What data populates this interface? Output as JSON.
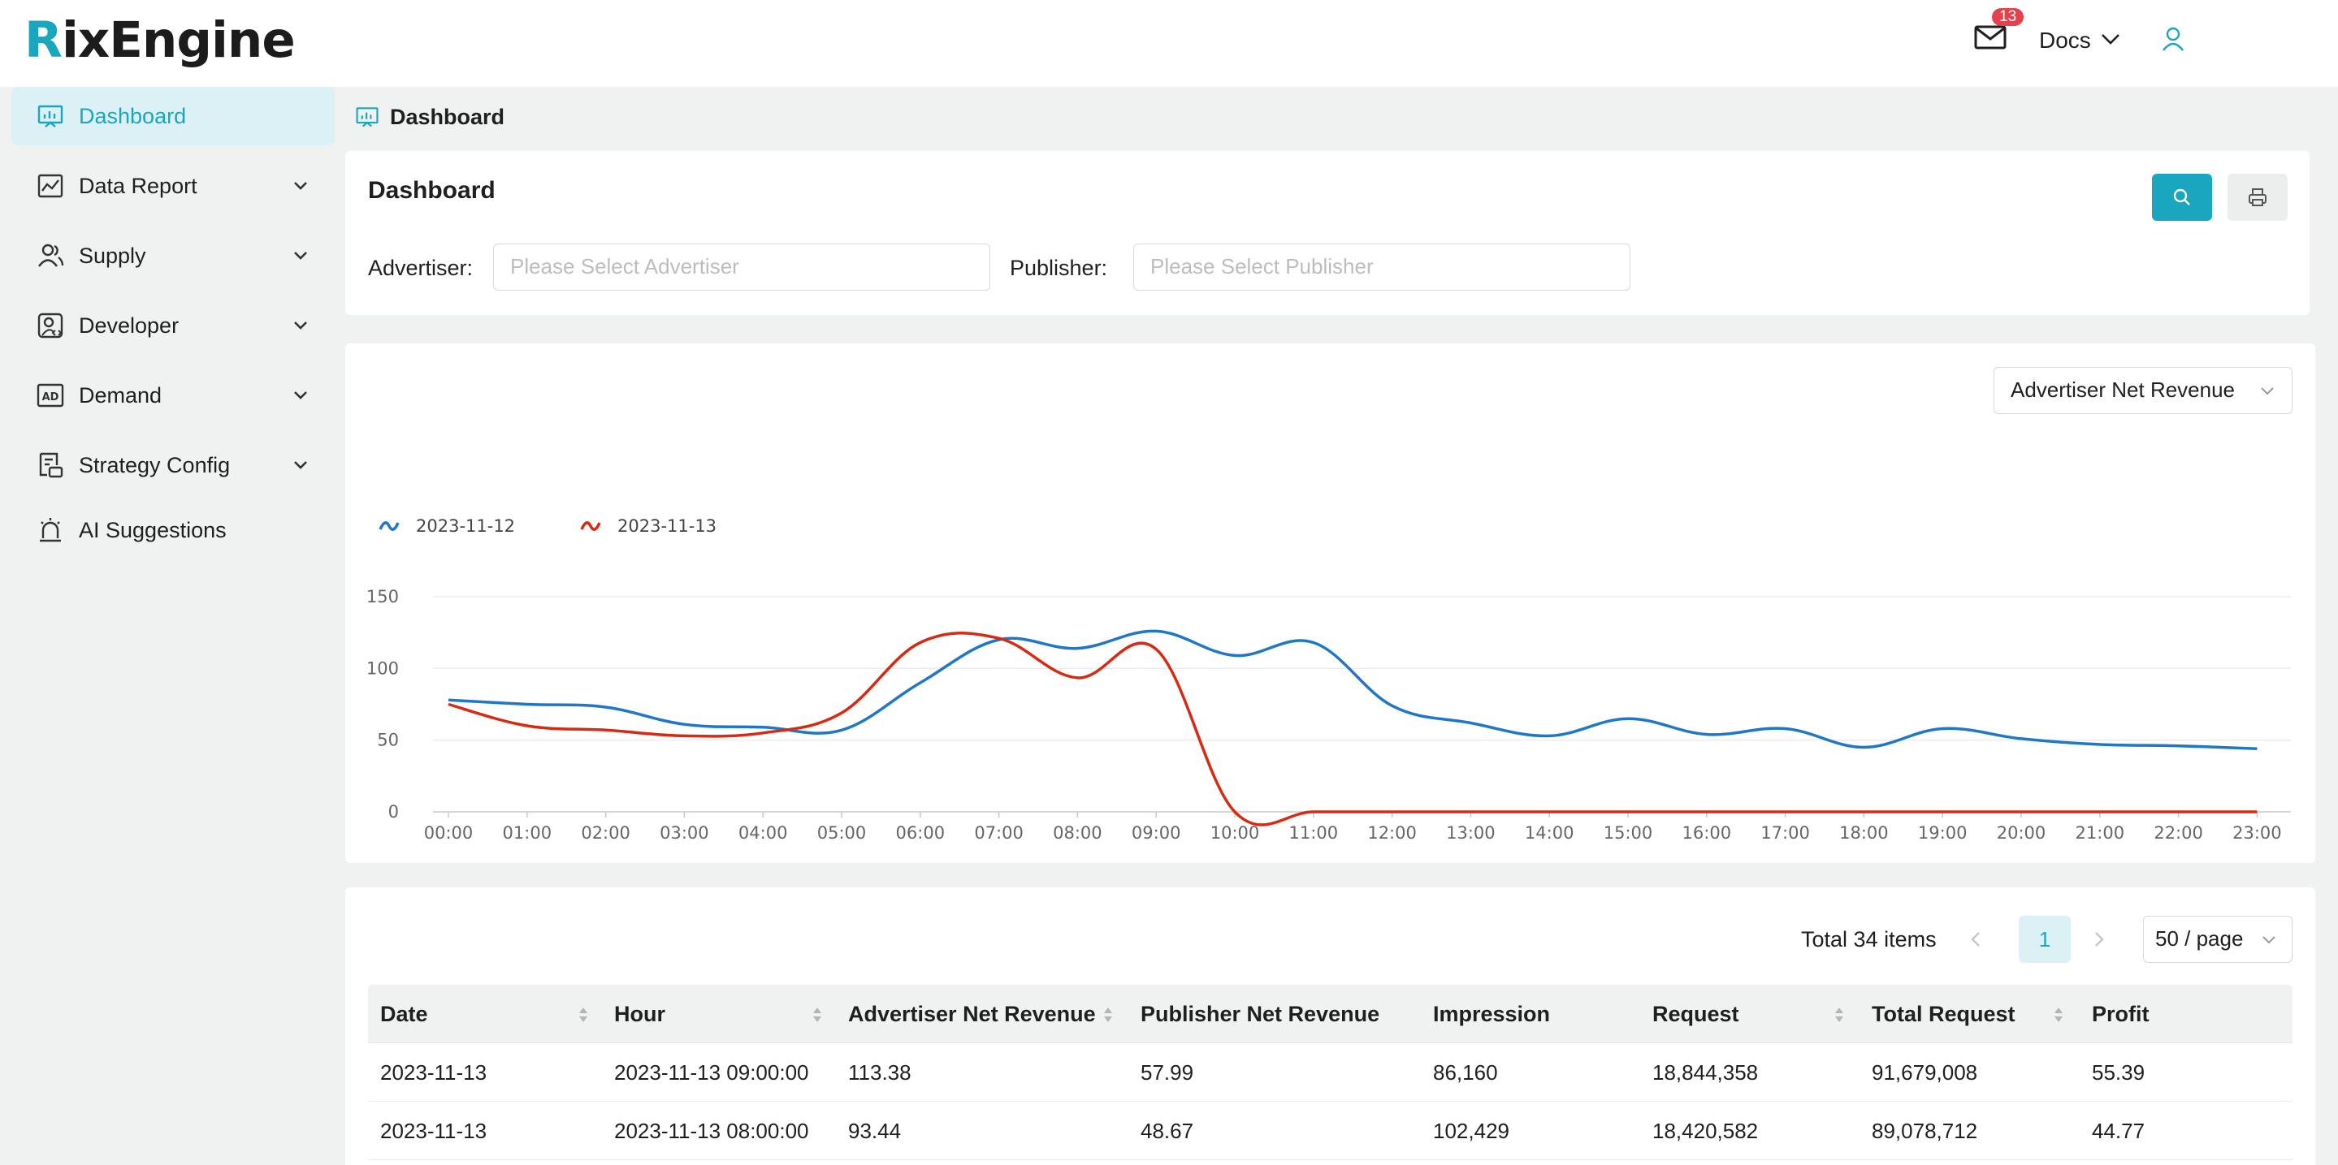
{
  "brand": {
    "logo_first": "R",
    "logo_rest": "ixEngine"
  },
  "header": {
    "mail_count": "13",
    "docs_label": "Docs"
  },
  "sidebar": {
    "items": [
      {
        "label": "Dashboard",
        "icon": "dashboard-icon",
        "active": true
      },
      {
        "label": "Data Report",
        "icon": "chart-icon",
        "expandable": true
      },
      {
        "label": "Supply",
        "icon": "users-icon",
        "expandable": true
      },
      {
        "label": "Developer",
        "icon": "developer-icon",
        "expandable": true
      },
      {
        "label": "Demand",
        "icon": "ad-icon",
        "expandable": true
      },
      {
        "label": "Strategy Config",
        "icon": "strategy-icon",
        "expandable": true
      },
      {
        "label": "AI Suggestions",
        "icon": "alarm-icon"
      }
    ]
  },
  "breadcrumb": {
    "label": "Dashboard"
  },
  "filters": {
    "title": "Dashboard",
    "advertiser_label": "Advertiser:",
    "advertiser_placeholder": "Please Select Advertiser",
    "publisher_label": "Publisher:",
    "publisher_placeholder": "Please Select Publisher"
  },
  "metric_select": {
    "value": "Advertiser Net Revenue"
  },
  "chart_data": {
    "type": "line",
    "categories": [
      "00:00",
      "01:00",
      "02:00",
      "03:00",
      "04:00",
      "05:00",
      "06:00",
      "07:00",
      "08:00",
      "09:00",
      "10:00",
      "11:00",
      "12:00",
      "13:00",
      "14:00",
      "15:00",
      "16:00",
      "17:00",
      "18:00",
      "19:00",
      "20:00",
      "21:00",
      "22:00",
      "23:00"
    ],
    "series": [
      {
        "name": "2023-11-12",
        "color": "#1f77c8",
        "values": [
          78,
          75,
          73,
          61,
          59,
          57,
          90,
          120,
          114,
          126,
          109,
          118,
          74,
          62,
          53,
          65,
          54,
          58,
          45,
          58,
          51,
          47,
          46,
          44
        ]
      },
      {
        "name": "2023-11-13",
        "color": "#d62a12",
        "values": [
          75,
          60,
          57,
          53,
          55,
          69,
          118,
          121,
          93.44,
          113.38,
          0,
          0,
          0,
          0,
          0,
          0,
          0,
          0,
          0,
          0,
          0,
          0,
          0,
          0
        ]
      }
    ],
    "yticks": [
      0,
      50,
      100,
      150
    ],
    "ylim": [
      0,
      150
    ],
    "legend": "top-left",
    "grid": true
  },
  "pagination": {
    "total": "Total 34 items",
    "current": "1",
    "page_size": "50 / page"
  },
  "table": {
    "columns": [
      "Date",
      "Hour",
      "Advertiser Net Revenue",
      "Publisher Net Revenue",
      "Impression",
      "Request",
      "Total Request",
      "Profit"
    ],
    "rows": [
      [
        "2023-11-13",
        "2023-11-13 09:00:00",
        "113.38",
        "57.99",
        "86,160",
        "18,844,358",
        "91,679,008",
        "55.39"
      ],
      [
        "2023-11-13",
        "2023-11-13 08:00:00",
        "93.44",
        "48.67",
        "102,429",
        "18,420,582",
        "89,078,712",
        "44.77"
      ]
    ]
  },
  "colors": {
    "accent": "#1aa6bf",
    "badge": "#e5414d"
  }
}
